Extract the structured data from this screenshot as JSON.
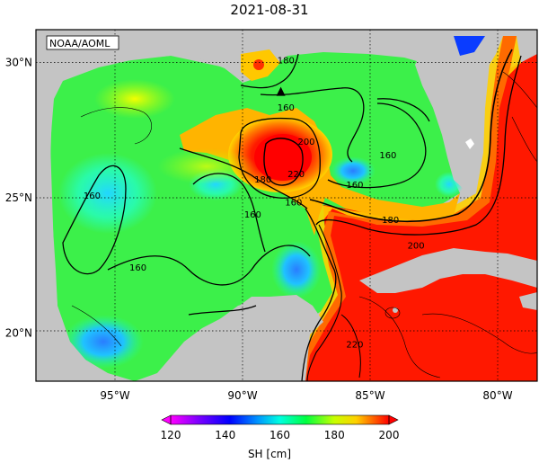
{
  "map": {
    "title": "2021-08-31",
    "credit": "NOAA/AOML",
    "lat_labels": [
      {
        "lat": 30,
        "text": "30°N"
      },
      {
        "lat": 25,
        "text": "25°N"
      },
      {
        "lat": 20,
        "text": "20°N"
      }
    ],
    "lon_labels": [
      {
        "lon": -95,
        "text": "95°W"
      },
      {
        "lon": -90,
        "text": "90°W"
      },
      {
        "lon": -85,
        "text": "85°W"
      },
      {
        "lon": -80,
        "text": "80°W"
      }
    ],
    "contour_labels": [
      {
        "lon": -88.3,
        "lat": 30.1,
        "text": "180"
      },
      {
        "lon": -88.3,
        "lat": 28.35,
        "text": "160"
      },
      {
        "lon": -87.5,
        "lat": 27.1,
        "text": "200"
      },
      {
        "lon": -87.9,
        "lat": 25.9,
        "text": "220"
      },
      {
        "lon": -89.2,
        "lat": 25.7,
        "text": "180"
      },
      {
        "lon": -88.0,
        "lat": 24.85,
        "text": "160"
      },
      {
        "lon": -89.6,
        "lat": 24.4,
        "text": "160"
      },
      {
        "lon": -85.6,
        "lat": 25.5,
        "text": "160"
      },
      {
        "lon": -84.3,
        "lat": 26.6,
        "text": "160"
      },
      {
        "lon": -95.9,
        "lat": 25.1,
        "text": "160"
      },
      {
        "lon": -94.1,
        "lat": 22.45,
        "text": "160"
      },
      {
        "lon": -84.2,
        "lat": 24.2,
        "text": "180"
      },
      {
        "lon": -83.2,
        "lat": 23.25,
        "text": "200"
      },
      {
        "lon": -85.6,
        "lat": 19.6,
        "text": "220"
      }
    ],
    "marker": {
      "lon": -88.5,
      "lat": 28.9,
      "symbol": "triangle"
    },
    "colorbar": {
      "label": "SH [cm]",
      "ticks": [
        "120",
        "140",
        "160",
        "180",
        "200"
      ],
      "min": 120,
      "max": 200
    }
  }
}
